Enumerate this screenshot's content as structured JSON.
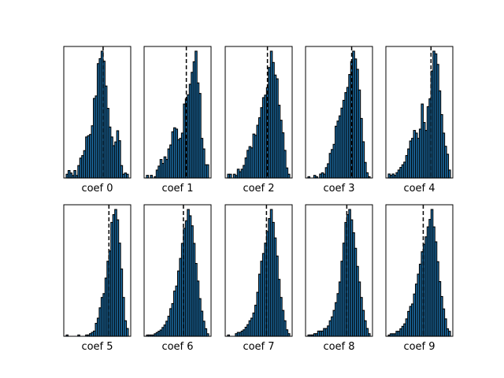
{
  "chart_data": {
    "type": "bar",
    "layout": "grid 2 rows x 5 columns",
    "grid": false,
    "y_ticks_shown": false,
    "x_ticks_shown": false,
    "bar_fill": "#1f77b4",
    "bar_edge": "#000000",
    "reference_line_style": "dashed black vertical",
    "panels": [
      {
        "xlabel": "coef 0",
        "values": [
          3,
          6,
          4,
          2,
          6,
          2,
          10,
          16,
          18,
          22,
          33,
          34,
          35,
          42,
          64,
          66,
          92,
          96,
          102,
          94,
          74,
          56,
          41,
          33,
          26,
          29,
          38,
          30,
          10,
          3,
          4,
          3
        ],
        "ref_bin": 19.0
      },
      {
        "xlabel": "coef 1",
        "values": [
          2,
          0,
          2,
          0,
          1,
          6,
          9,
          14,
          11,
          16,
          14,
          22,
          25,
          35,
          38,
          37,
          29,
          30,
          34,
          56,
          60,
          63,
          71,
          80,
          88,
          96,
          72,
          64,
          30,
          22,
          10,
          10
        ],
        "ref_bin": 20.5
      },
      {
        "xlabel": "coef 2",
        "values": [
          3,
          3,
          0,
          3,
          2,
          7,
          5,
          7,
          10,
          16,
          22,
          25,
          24,
          35,
          34,
          42,
          48,
          56,
          64,
          66,
          72,
          88,
          101,
          92,
          82,
          79,
          58,
          46,
          36,
          22,
          8,
          3
        ],
        "ref_bin": 20.5
      },
      {
        "xlabel": "coef 3",
        "values": [
          1,
          0,
          0,
          2,
          1,
          0,
          3,
          4,
          3,
          8,
          11,
          19,
          22,
          26,
          40,
          44,
          48,
          54,
          60,
          66,
          70,
          80,
          90,
          98,
          92,
          84,
          68,
          46,
          28,
          12,
          4,
          1
        ],
        "ref_bin": 22.5
      },
      {
        "xlabel": "coef 4",
        "values": [
          3,
          2,
          3,
          2,
          4,
          6,
          8,
          10,
          12,
          17,
          22,
          28,
          30,
          36,
          34,
          30,
          37,
          56,
          42,
          36,
          54,
          60,
          81,
          96,
          94,
          86,
          66,
          48,
          34,
          24,
          18,
          6
        ],
        "ref_bin": 22.0
      },
      {
        "xlabel": "coef 5",
        "values": [
          1,
          0,
          0,
          0,
          0,
          0,
          1,
          0,
          0,
          0,
          1,
          1,
          2,
          3,
          4,
          10,
          14,
          22,
          30,
          33,
          45,
          58,
          66,
          88,
          94,
          98,
          90,
          72,
          52,
          30,
          12,
          6
        ],
        "ref_bin": 22.0
      },
      {
        "xlabel": "coef 6",
        "values": [
          1,
          1,
          1,
          1,
          2,
          3,
          4,
          5,
          7,
          9,
          12,
          16,
          22,
          26,
          36,
          40,
          52,
          62,
          74,
          86,
          92,
          101,
          96,
          88,
          74,
          58,
          44,
          30,
          20,
          12,
          6,
          2
        ],
        "ref_bin": 19.0
      },
      {
        "xlabel": "coef 7",
        "values": [
          1,
          0,
          0,
          0,
          2,
          3,
          3,
          4,
          5,
          7,
          9,
          12,
          14,
          18,
          24,
          34,
          48,
          58,
          64,
          72,
          81,
          91,
          98,
          88,
          76,
          62,
          44,
          30,
          20,
          12,
          5,
          2
        ],
        "ref_bin": 20.0
      },
      {
        "xlabel": "coef 8",
        "values": [
          1,
          1,
          1,
          2,
          2,
          4,
          4,
          4,
          6,
          6,
          8,
          12,
          15,
          20,
          26,
          33,
          42,
          58,
          72,
          88,
          94,
          98,
          90,
          80,
          68,
          54,
          42,
          30,
          20,
          12,
          6,
          2
        ],
        "ref_bin": 20.0
      },
      {
        "xlabel": "coef 9",
        "values": [
          1,
          2,
          2,
          2,
          4,
          4,
          6,
          8,
          10,
          14,
          20,
          24,
          26,
          34,
          42,
          50,
          58,
          68,
          74,
          80,
          88,
          94,
          102,
          88,
          76,
          60,
          44,
          32,
          22,
          14,
          6,
          4
        ],
        "ref_bin": 18.0
      }
    ]
  }
}
